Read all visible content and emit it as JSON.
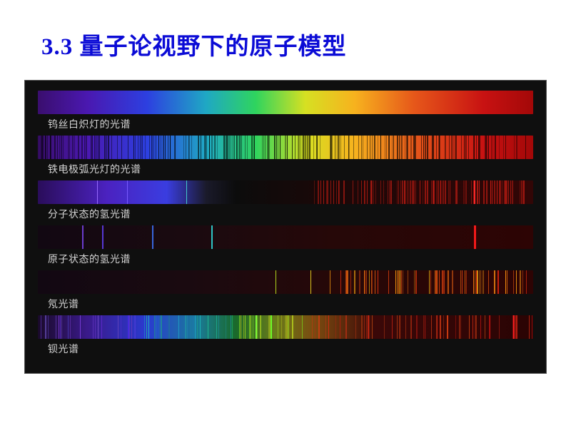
{
  "title": {
    "text": "3.3  量子论视野下的原子模型",
    "color": "#0b0bd6"
  },
  "panel": {
    "background_color": "#0f0f0f",
    "label_color": "#d4d4d4",
    "label_fontsize": 14
  },
  "visible_rainbow": {
    "stops": [
      {
        "pct": 0,
        "color": "#3a0e6e"
      },
      {
        "pct": 10,
        "color": "#4a18b0"
      },
      {
        "pct": 22,
        "color": "#2d3fe0"
      },
      {
        "pct": 34,
        "color": "#1fa8c4"
      },
      {
        "pct": 44,
        "color": "#2fd45e"
      },
      {
        "pct": 54,
        "color": "#d6e022"
      },
      {
        "pct": 64,
        "color": "#f7b21e"
      },
      {
        "pct": 76,
        "color": "#e6571a"
      },
      {
        "pct": 90,
        "color": "#c81212"
      },
      {
        "pct": 100,
        "color": "#a30808"
      }
    ]
  },
  "dark_base": {
    "stops": [
      {
        "pct": 0,
        "color": "#120812"
      },
      {
        "pct": 30,
        "color": "#1a0a10"
      },
      {
        "pct": 60,
        "color": "#260808"
      },
      {
        "pct": 100,
        "color": "#2d0404"
      }
    ]
  },
  "spectra": [
    {
      "id": "tungsten",
      "label": "钨丝白炽灯的光谱",
      "type": "continuous",
      "base": "visible_rainbow",
      "lines": []
    },
    {
      "id": "iron-arc",
      "label": "铁电极弧光灯的光谱",
      "type": "line-dense",
      "base": "visible_rainbow",
      "line_seed": 71,
      "line_count": 260,
      "line_region": [
        0,
        100
      ],
      "line_color_mode": "dark",
      "line_alpha": 0.55
    },
    {
      "id": "h2-molecular",
      "label": "分子状态的氢光谱",
      "type": "band+lines",
      "base_custom": [
        {
          "pct": 0,
          "color": "#2a0d5a"
        },
        {
          "pct": 14,
          "color": "#4b22c0"
        },
        {
          "pct": 26,
          "color": "#3a3de0"
        },
        {
          "pct": 34,
          "color": "#1a1a2a"
        },
        {
          "pct": 40,
          "color": "#0c0c0c"
        },
        {
          "pct": 58,
          "color": "#1a0808"
        },
        {
          "pct": 100,
          "color": "#320606"
        }
      ],
      "line_seed": 33,
      "line_count": 120,
      "line_region": [
        55,
        100
      ],
      "line_color_mode": "red",
      "line_alpha": 0.6,
      "extra_lines": [
        {
          "pct": 12,
          "color": "#9a6bff",
          "w": 1
        },
        {
          "pct": 18,
          "color": "#7a5bff",
          "w": 1
        },
        {
          "pct": 30,
          "color": "#46d0d0",
          "w": 1
        },
        {
          "pct": 88,
          "color": "#ff2a2a",
          "w": 2
        }
      ]
    },
    {
      "id": "h-atomic",
      "label": "原子状态的氢光谱",
      "type": "emission",
      "base": "dark_base",
      "lines": [
        {
          "pct": 9,
          "color": "#6f3fd8",
          "w": 2
        },
        {
          "pct": 13,
          "color": "#5a3adf",
          "w": 2
        },
        {
          "pct": 23,
          "color": "#3a6be8",
          "w": 2
        },
        {
          "pct": 35,
          "color": "#2fd0d0",
          "w": 2
        },
        {
          "pct": 88,
          "color": "#ff1a1a",
          "w": 3
        }
      ]
    },
    {
      "id": "neon",
      "label": "氖光谱",
      "type": "emission-dense",
      "base": "dark_base",
      "line_seed": 57,
      "line_count": 70,
      "line_region": [
        58,
        99
      ],
      "line_color_mode": "red-orange",
      "line_alpha": 0.9,
      "extra_lines": [
        {
          "pct": 55,
          "color": "#e8d020",
          "w": 1
        },
        {
          "pct": 48,
          "color": "#b8e020",
          "w": 1
        }
      ]
    },
    {
      "id": "barium",
      "label": "钡光谱",
      "type": "emission-multi",
      "base_custom": [
        {
          "pct": 0,
          "color": "#1a0a2a"
        },
        {
          "pct": 10,
          "color": "#3a1a8a"
        },
        {
          "pct": 22,
          "color": "#2a3ad0"
        },
        {
          "pct": 32,
          "color": "#1a7a9a"
        },
        {
          "pct": 40,
          "color": "#1a6a2a"
        },
        {
          "pct": 48,
          "color": "#6a7a1a"
        },
        {
          "pct": 56,
          "color": "#7a4a10"
        },
        {
          "pct": 68,
          "color": "#3a0808"
        },
        {
          "pct": 100,
          "color": "#2a0404"
        }
      ],
      "line_seed": 91,
      "line_count": 140,
      "line_region": [
        0,
        100
      ],
      "line_color_mode": "mixed",
      "line_alpha": 0.7,
      "extra_lines": [
        {
          "pct": 44,
          "color": "#7fff3a",
          "w": 2
        },
        {
          "pct": 47,
          "color": "#6aff2a",
          "w": 2
        },
        {
          "pct": 96,
          "color": "#ff2020",
          "w": 2
        }
      ]
    }
  ]
}
